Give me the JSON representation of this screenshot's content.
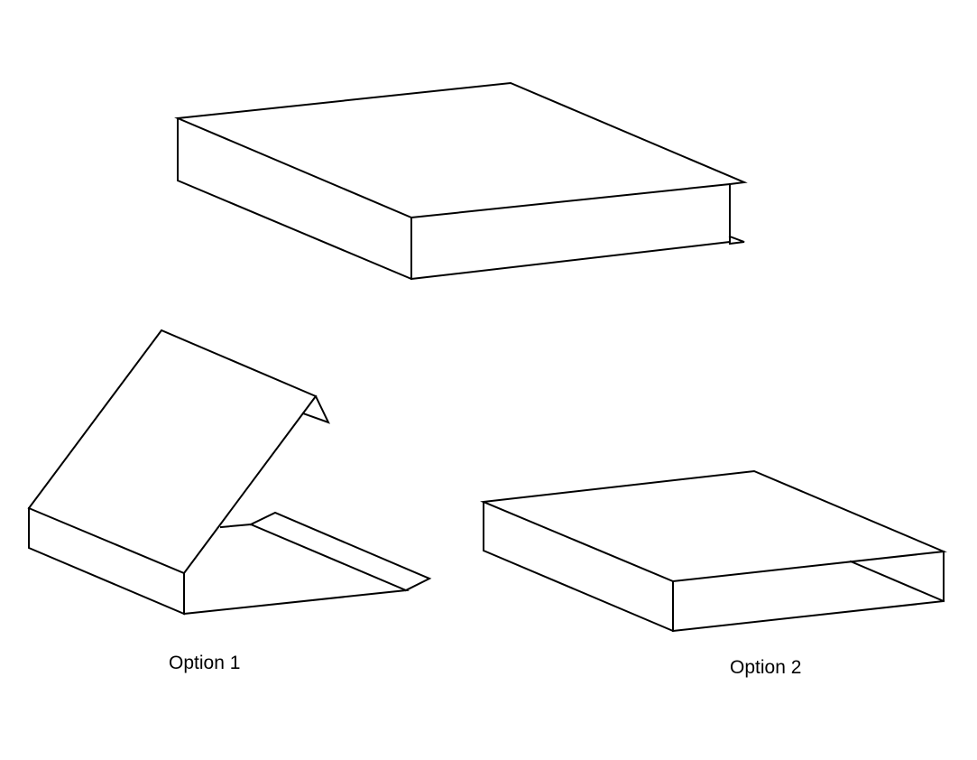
{
  "captions": {
    "option_1": "Option 1",
    "option_2": "Option 2"
  },
  "colors": {
    "background": "#ffffff",
    "stroke": "#000000"
  }
}
